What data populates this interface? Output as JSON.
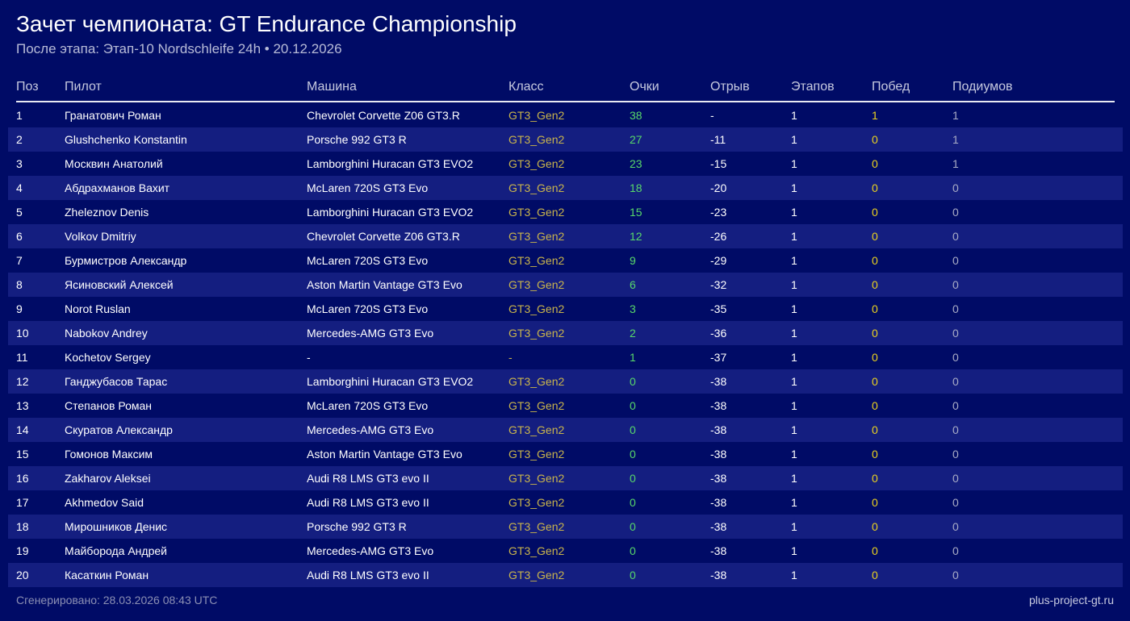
{
  "header": {
    "title": "Зачет чемпионата: GT Endurance Championship",
    "subtitle": "После этапа: Этап-10 Nordschleife 24h • 20.12.2026"
  },
  "table": {
    "columns": [
      "Поз",
      "Пилот",
      "Машина",
      "Класс",
      "Очки",
      "Отрыв",
      "Этапов",
      "Побед",
      "Подиумов"
    ],
    "rows": [
      {
        "pos": "1",
        "driver": "Гранатович Роман",
        "car": "Chevrolet Corvette Z06 GT3.R",
        "class": "GT3_Gen2",
        "points": "38",
        "gap": "-",
        "stages": "1",
        "wins": "1",
        "podiums": "1"
      },
      {
        "pos": "2",
        "driver": "Glushchenko Konstantin",
        "car": "Porsche 992 GT3 R",
        "class": "GT3_Gen2",
        "points": "27",
        "gap": "-11",
        "stages": "1",
        "wins": "0",
        "podiums": "1"
      },
      {
        "pos": "3",
        "driver": "Москвин Анатолий",
        "car": "Lamborghini Huracan GT3 EVO2",
        "class": "GT3_Gen2",
        "points": "23",
        "gap": "-15",
        "stages": "1",
        "wins": "0",
        "podiums": "1"
      },
      {
        "pos": "4",
        "driver": "Абдрахманов Вахит",
        "car": "McLaren 720S GT3 Evo",
        "class": "GT3_Gen2",
        "points": "18",
        "gap": "-20",
        "stages": "1",
        "wins": "0",
        "podiums": "0"
      },
      {
        "pos": "5",
        "driver": "Zheleznov Denis",
        "car": "Lamborghini Huracan GT3 EVO2",
        "class": "GT3_Gen2",
        "points": "15",
        "gap": "-23",
        "stages": "1",
        "wins": "0",
        "podiums": "0"
      },
      {
        "pos": "6",
        "driver": "Volkov Dmitriy",
        "car": "Chevrolet Corvette Z06 GT3.R",
        "class": "GT3_Gen2",
        "points": "12",
        "gap": "-26",
        "stages": "1",
        "wins": "0",
        "podiums": "0"
      },
      {
        "pos": "7",
        "driver": "Бурмистров Александр",
        "car": "McLaren 720S GT3 Evo",
        "class": "GT3_Gen2",
        "points": "9",
        "gap": "-29",
        "stages": "1",
        "wins": "0",
        "podiums": "0"
      },
      {
        "pos": "8",
        "driver": "Ясиновский Алексей",
        "car": "Aston Martin Vantage GT3 Evo",
        "class": "GT3_Gen2",
        "points": "6",
        "gap": "-32",
        "stages": "1",
        "wins": "0",
        "podiums": "0"
      },
      {
        "pos": "9",
        "driver": "Norot Ruslan",
        "car": "McLaren 720S GT3 Evo",
        "class": "GT3_Gen2",
        "points": "3",
        "gap": "-35",
        "stages": "1",
        "wins": "0",
        "podiums": "0"
      },
      {
        "pos": "10",
        "driver": "Nabokov Andrey",
        "car": "Mercedes-AMG GT3 Evo",
        "class": "GT3_Gen2",
        "points": "2",
        "gap": "-36",
        "stages": "1",
        "wins": "0",
        "podiums": "0"
      },
      {
        "pos": "11",
        "driver": "Kochetov Sergey",
        "car": "-",
        "class": "-",
        "points": "1",
        "gap": "-37",
        "stages": "1",
        "wins": "0",
        "podiums": "0"
      },
      {
        "pos": "12",
        "driver": "Ганджубасов Тарас",
        "car": "Lamborghini Huracan GT3 EVO2",
        "class": "GT3_Gen2",
        "points": "0",
        "gap": "-38",
        "stages": "1",
        "wins": "0",
        "podiums": "0"
      },
      {
        "pos": "13",
        "driver": "Степанов Роман",
        "car": "McLaren 720S GT3 Evo",
        "class": "GT3_Gen2",
        "points": "0",
        "gap": "-38",
        "stages": "1",
        "wins": "0",
        "podiums": "0"
      },
      {
        "pos": "14",
        "driver": "Скуратов Александр",
        "car": "Mercedes-AMG GT3 Evo",
        "class": "GT3_Gen2",
        "points": "0",
        "gap": "-38",
        "stages": "1",
        "wins": "0",
        "podiums": "0"
      },
      {
        "pos": "15",
        "driver": "Гомонов Максим",
        "car": "Aston Martin Vantage GT3 Evo",
        "class": "GT3_Gen2",
        "points": "0",
        "gap": "-38",
        "stages": "1",
        "wins": "0",
        "podiums": "0"
      },
      {
        "pos": "16",
        "driver": "Zakharov Aleksei",
        "car": "Audi R8 LMS GT3 evo II",
        "class": "GT3_Gen2",
        "points": "0",
        "gap": "-38",
        "stages": "1",
        "wins": "0",
        "podiums": "0"
      },
      {
        "pos": "17",
        "driver": "Akhmedov Said",
        "car": "Audi R8 LMS GT3 evo II",
        "class": "GT3_Gen2",
        "points": "0",
        "gap": "-38",
        "stages": "1",
        "wins": "0",
        "podiums": "0"
      },
      {
        "pos": "18",
        "driver": "Мирошников Денис",
        "car": "Porsche 992 GT3 R",
        "class": "GT3_Gen2",
        "points": "0",
        "gap": "-38",
        "stages": "1",
        "wins": "0",
        "podiums": "0"
      },
      {
        "pos": "19",
        "driver": "Майборода Андрей",
        "car": "Mercedes-AMG GT3 Evo",
        "class": "GT3_Gen2",
        "points": "0",
        "gap": "-38",
        "stages": "1",
        "wins": "0",
        "podiums": "0"
      },
      {
        "pos": "20",
        "driver": "Касаткин Роман",
        "car": "Audi R8 LMS GT3 evo II",
        "class": "GT3_Gen2",
        "points": "0",
        "gap": "-38",
        "stages": "1",
        "wins": "0",
        "podiums": "0"
      }
    ]
  },
  "footer": {
    "generated": "Сгенерировано: 28.03.2026 08:43 UTC",
    "site": "plus-project-gt.ru"
  },
  "colors": {
    "background": "#000b66",
    "row_alt": "#141e80",
    "class_text": "#c9b44c",
    "points_text": "#58d96a",
    "wins_text": "#ecd31e",
    "podiums_text": "#a9acc6"
  }
}
